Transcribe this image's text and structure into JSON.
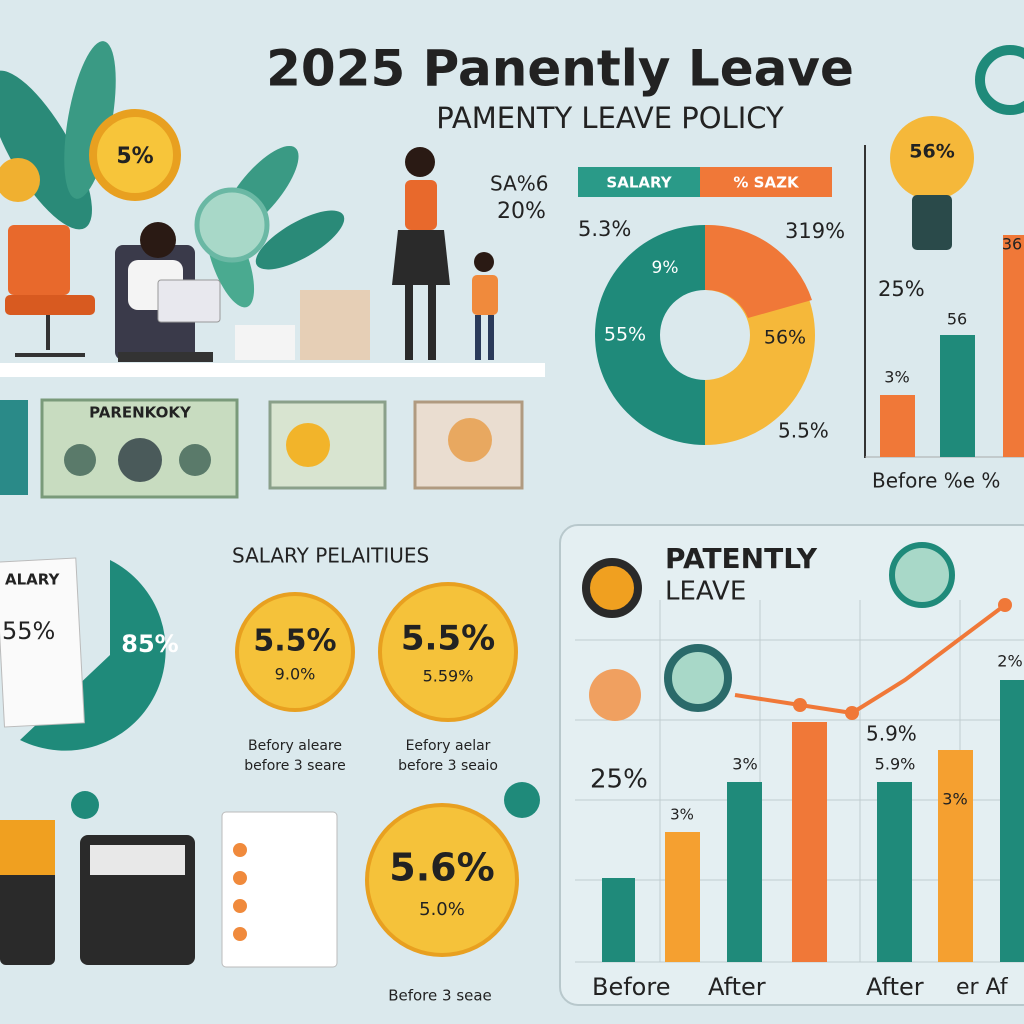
{
  "header": {
    "title": "2025 Panently Leave",
    "subtitle": "PAMENTY LEAVE POLICY"
  },
  "scene": {
    "stat_label": "SA%6",
    "stat_value": "20%",
    "coin": "5%",
    "banner": "PARENKOKY"
  },
  "donut": {
    "legend": [
      "SALARY",
      "% SAZK"
    ],
    "labels": [
      "5.3%",
      "319%",
      "9%",
      "55%",
      "56%",
      "5.5%"
    ]
  },
  "top_bars": {
    "bulb": "56%",
    "labels": [
      "25%",
      "3%",
      "56",
      "36"
    ],
    "x_label": "Before %e %"
  },
  "salary": {
    "title": "SALARY PELAITIUES",
    "doc": [
      "ALARY",
      "55%"
    ],
    "pie": "85%",
    "coins": [
      {
        "value": "5.5%",
        "sub": "9.0%",
        "caption": [
          "Befory aleare",
          "before 3 seare"
        ]
      },
      {
        "value": "5.5%",
        "sub": "5.59%",
        "caption": [
          "Eefory aelar",
          "before 3 seaio"
        ]
      },
      {
        "value": "5.6%",
        "sub": "5.0%",
        "caption": [
          "Before 3 seae"
        ]
      }
    ]
  },
  "leave_chart": {
    "title": [
      "PATENTLY",
      "LEAVE"
    ],
    "labels": [
      "25%",
      "5.9%",
      "3%",
      "3%",
      "5.9%",
      "3%",
      "2%"
    ],
    "x_labels": [
      "Before",
      "After",
      "After",
      "er Af"
    ]
  }
}
